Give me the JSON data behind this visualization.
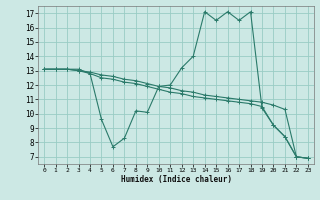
{
  "bg_color": "#cce8e4",
  "grid_color": "#99ccc4",
  "line_color": "#2a7a6a",
  "marker": "+",
  "xlabel": "Humidex (Indice chaleur)",
  "xlim": [
    -0.5,
    23.5
  ],
  "ylim": [
    6.5,
    17.5
  ],
  "xticks": [
    0,
    1,
    2,
    3,
    4,
    5,
    6,
    7,
    8,
    9,
    10,
    11,
    12,
    13,
    14,
    15,
    16,
    17,
    18,
    19,
    20,
    21,
    22,
    23
  ],
  "yticks": [
    7,
    8,
    9,
    10,
    11,
    12,
    13,
    14,
    15,
    16,
    17
  ],
  "series": [
    {
      "x": [
        0,
        1,
        2,
        3,
        4,
        5,
        6,
        7,
        8,
        9,
        10,
        11,
        12,
        13,
        14,
        15,
        16,
        17,
        18,
        19,
        20,
        21,
        22,
        23
      ],
      "y": [
        13.1,
        13.1,
        13.1,
        13.1,
        12.8,
        9.6,
        7.7,
        8.3,
        10.2,
        10.1,
        11.9,
        12.0,
        13.2,
        14.0,
        17.1,
        16.5,
        17.1,
        16.5,
        17.1,
        10.4,
        9.2,
        8.4,
        7.0,
        6.9
      ]
    },
    {
      "x": [
        0,
        1,
        2,
        3,
        4,
        5,
        6,
        7,
        8,
        9,
        10,
        11,
        12,
        13,
        14,
        15,
        16,
        17,
        18,
        19,
        20,
        21,
        22,
        23
      ],
      "y": [
        13.1,
        13.1,
        13.1,
        13.0,
        12.8,
        12.5,
        12.4,
        12.2,
        12.1,
        11.9,
        11.7,
        11.5,
        11.4,
        11.2,
        11.1,
        11.0,
        10.9,
        10.8,
        10.7,
        10.5,
        9.2,
        8.4,
        7.0,
        6.9
      ]
    },
    {
      "x": [
        0,
        1,
        2,
        3,
        4,
        5,
        6,
        7,
        8,
        9,
        10,
        11,
        12,
        13,
        14,
        15,
        16,
        17,
        18,
        19,
        20,
        21,
        22,
        23
      ],
      "y": [
        13.1,
        13.1,
        13.1,
        13.0,
        12.9,
        12.7,
        12.6,
        12.4,
        12.3,
        12.1,
        11.9,
        11.8,
        11.6,
        11.5,
        11.3,
        11.2,
        11.1,
        11.0,
        10.9,
        10.8,
        10.6,
        10.3,
        7.0,
        6.9
      ]
    }
  ]
}
